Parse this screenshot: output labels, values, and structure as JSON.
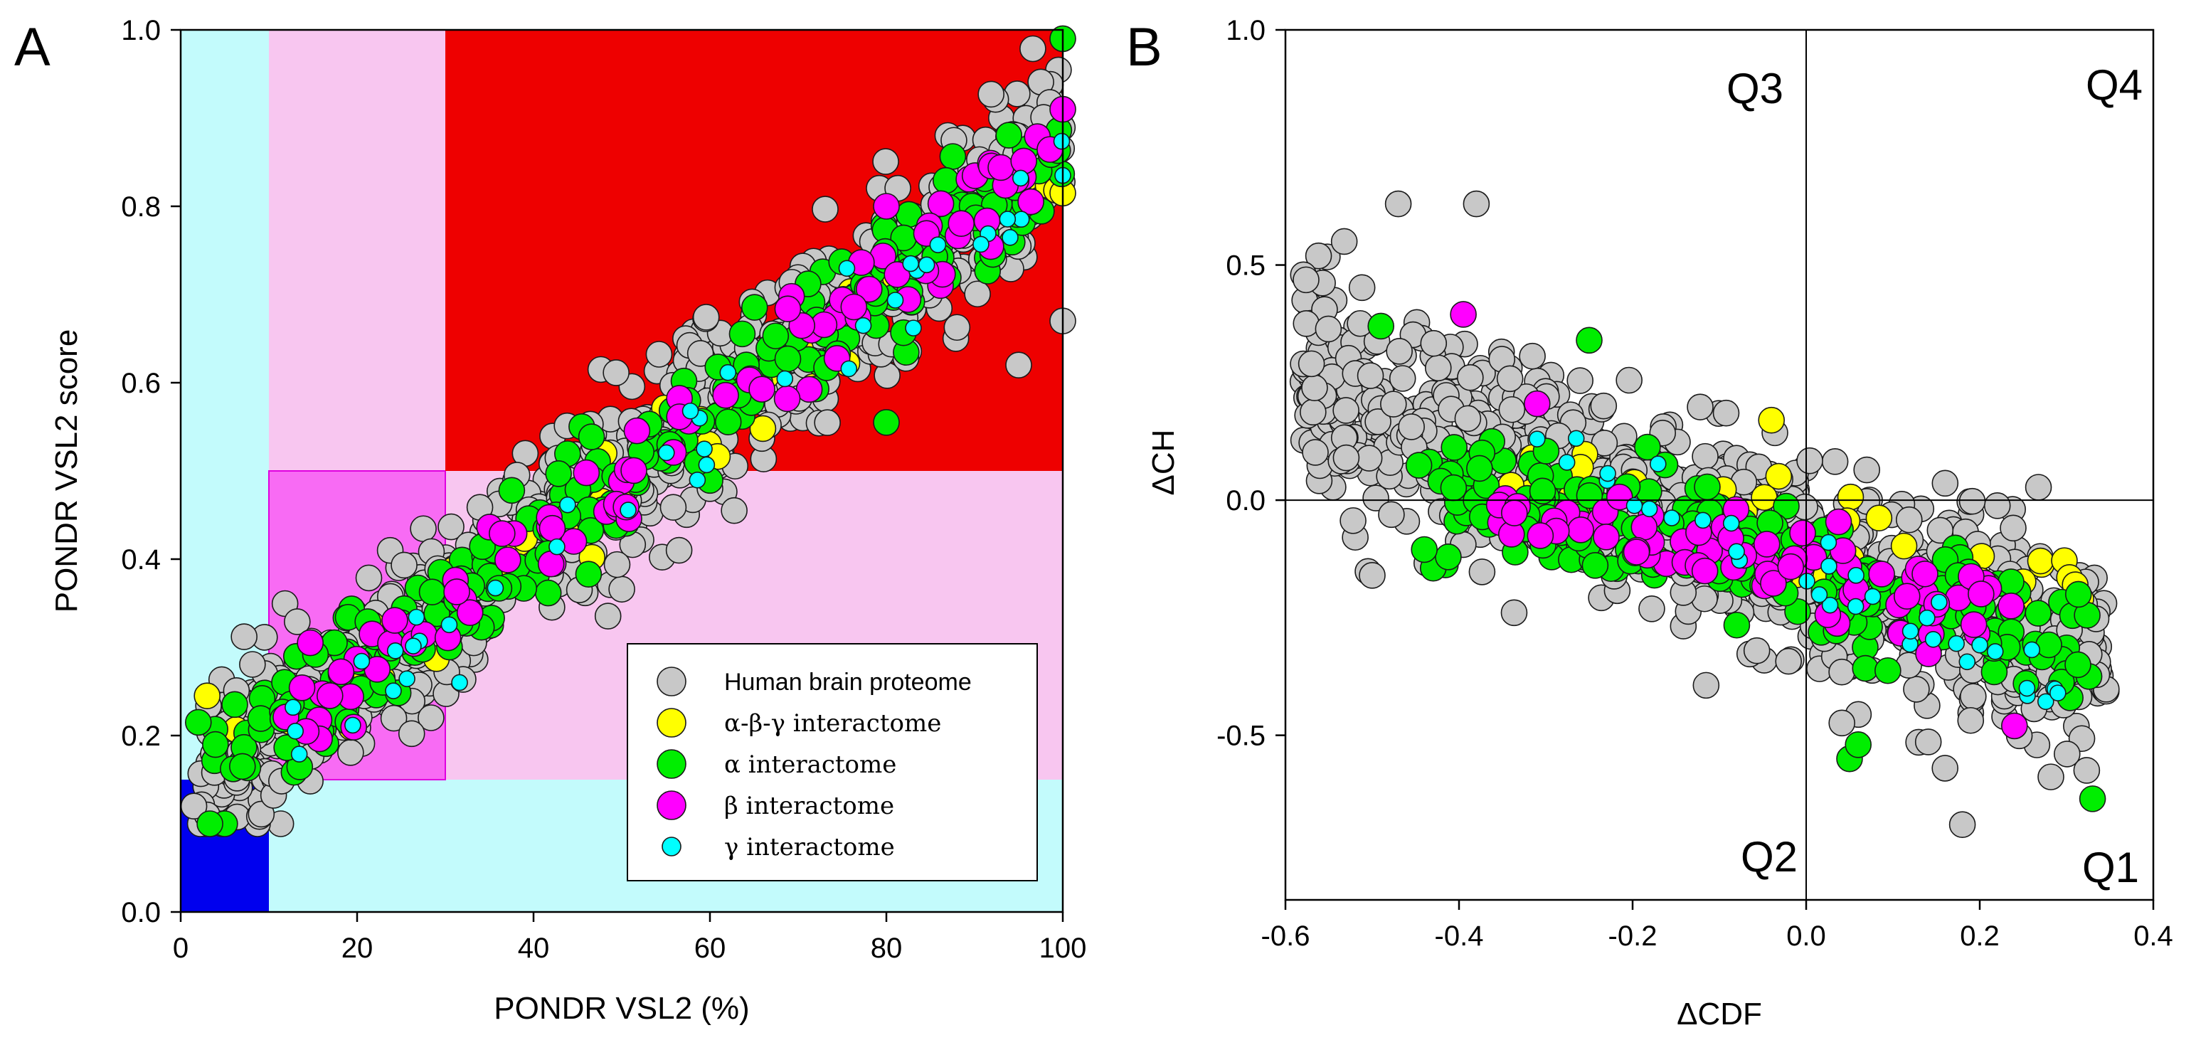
{
  "chart_data": [
    {
      "panel": "A",
      "type": "scatter",
      "xlabel": "PONDR VSL2 (%)",
      "ylabel": "PONDR VSL2 score",
      "xlim": [
        0,
        100
      ],
      "ylim": [
        0.0,
        1.0
      ],
      "x_ticks": [
        "0",
        "20",
        "40",
        "60",
        "80",
        "100"
      ],
      "y_ticks": [
        "0.0",
        "0.2",
        "0.4",
        "0.6",
        "0.8",
        "1.0"
      ],
      "x_tick_values": [
        0,
        20,
        40,
        60,
        80,
        100
      ],
      "y_tick_values": [
        0,
        0.2,
        0.4,
        0.6,
        0.8,
        1.0
      ],
      "background_regions": [
        {
          "name": "cyan-left",
          "x": [
            0,
            10
          ],
          "y": [
            0,
            1.0
          ],
          "color": "#c3fbfc"
        },
        {
          "name": "cyan-bottom",
          "x": [
            10,
            100
          ],
          "y": [
            0,
            0.15
          ],
          "color": "#c3fbfc"
        },
        {
          "name": "blue",
          "x": [
            0,
            10
          ],
          "y": [
            0,
            0.15
          ],
          "color": "#0000ee"
        },
        {
          "name": "pink-top",
          "x": [
            10,
            30
          ],
          "y": [
            0.5,
            1.0
          ],
          "color": "#f8c6f0"
        },
        {
          "name": "pink-right",
          "x": [
            30,
            100
          ],
          "y": [
            0.15,
            0.5
          ],
          "color": "#f8c6f0"
        },
        {
          "name": "magenta",
          "x": [
            10,
            30
          ],
          "y": [
            0.15,
            0.5
          ],
          "color": "#f86bf4"
        },
        {
          "name": "red",
          "x": [
            30,
            100
          ],
          "y": [
            0.5,
            1.0
          ],
          "color": "#ee0000"
        }
      ],
      "legend": {
        "placement": "bottom-right",
        "entries": [
          {
            "label": "Human brain proteome",
            "color": "#c8c8c8",
            "serif": false
          },
          {
            "label": "α-β-γ interactome",
            "color": "#ffff00",
            "serif": true
          },
          {
            "label": "α interactome",
            "color": "#00ee00",
            "serif": true
          },
          {
            "label": "β interactome",
            "color": "#ff00ff",
            "serif": true
          },
          {
            "label": "γ interactome",
            "color": "#00ffff",
            "serif": true
          }
        ]
      },
      "series": [
        {
          "name": "Human brain proteome",
          "color": "#c8c8c8",
          "distribution": {
            "x_range": [
              2,
              100
            ],
            "y_trend": [
              0.14,
              0.87
            ],
            "spread": 0.05,
            "count": 900,
            "outliers": [
              [
                56.5,
                0.41
              ],
              [
                95,
                0.62
              ],
              [
                100,
                0.67
              ],
              [
                3,
                0.11
              ],
              [
                1.5,
                0.12
              ],
              [
                60,
                0.48
              ]
            ]
          }
        },
        {
          "name": "α-β-γ interactome",
          "color": "#ffff00",
          "distribution": {
            "x_range": [
              3,
              100
            ],
            "y_trend": [
              0.15,
              0.85
            ],
            "spread": 0.03,
            "count": 45,
            "outliers": [
              [
                3,
                0.245
              ],
              [
                100,
                0.815
              ],
              [
                66,
                0.548
              ],
              [
                48,
                0.52
              ]
            ]
          }
        },
        {
          "name": "α interactome",
          "color": "#00ee00",
          "distribution": {
            "x_range": [
              3,
              100
            ],
            "y_trend": [
              0.15,
              0.86
            ],
            "spread": 0.035,
            "count": 250,
            "outliers": [
              [
                2,
                0.215
              ],
              [
                7,
                0.165
              ],
              [
                100,
                0.99
              ],
              [
                80,
                0.555
              ]
            ]
          }
        },
        {
          "name": "β interactome",
          "color": "#ff00ff",
          "distribution": {
            "x_range": [
              10,
              100
            ],
            "y_trend": [
              0.2,
              0.87
            ],
            "spread": 0.03,
            "count": 90,
            "outliers": [
              [
                80,
                0.8
              ],
              [
                100,
                0.91
              ]
            ]
          }
        },
        {
          "name": "γ interactome",
          "color": "#00ffff",
          "distribution": {
            "x_range": [
              12,
              100
            ],
            "y_trend": [
              0.2,
              0.84
            ],
            "spread": 0.03,
            "count": 40,
            "outliers": [
              [
                13,
                0.205
              ],
              [
                100,
                0.835
              ]
            ]
          }
        }
      ]
    },
    {
      "panel": "B",
      "type": "scatter",
      "xlabel": "ΔCDF",
      "ylabel": "ΔCH",
      "xlim": [
        -0.6,
        0.4
      ],
      "ylim": [
        -0.85,
        1.0
      ],
      "x_ticks": [
        "-0.6",
        "-0.4",
        "-0.2",
        "0.0",
        "0.2",
        "0.4"
      ],
      "y_ticks": [
        "-0.5",
        "0.0",
        "0.5",
        "1.0"
      ],
      "x_tick_values": [
        -0.6,
        -0.4,
        -0.2,
        0.0,
        0.2,
        0.4
      ],
      "y_tick_values": [
        -0.5,
        0.0,
        0.5,
        1.0
      ],
      "reference_lines": {
        "x": 0.0,
        "y": 0.0
      },
      "quadrants": [
        {
          "label": "Q1",
          "position": "bottom-right"
        },
        {
          "label": "Q2",
          "position": "bottom-left-of-center"
        },
        {
          "label": "Q3",
          "position": "top-left-of-center"
        },
        {
          "label": "Q4",
          "position": "top-right"
        }
      ],
      "series": [
        {
          "name": "Human brain proteome",
          "color": "#c8c8c8",
          "distribution": {
            "x_range": [
              -0.58,
              0.35
            ],
            "y_at_xmin": 0.25,
            "y_at_xmax": -0.35,
            "spread": 0.2,
            "count": 900,
            "outliers": [
              [
                -0.47,
                0.63
              ],
              [
                -0.38,
                0.63
              ],
              [
                -0.5,
                -0.16
              ],
              [
                0.16,
                -0.57
              ],
              [
                0.18,
                -0.69
              ],
              [
                -0.57,
                0.29
              ],
              [
                -0.53,
                0.09
              ]
            ]
          }
        },
        {
          "name": "α-β-γ interactome",
          "color": "#ffff00",
          "distribution": {
            "x_range": [
              -0.35,
              0.32
            ],
            "y_at_xmin": 0.05,
            "y_at_xmax": -0.2,
            "spread": 0.1,
            "count": 40,
            "outliers": [
              [
                -0.04,
                0.17
              ],
              [
                0.31,
                -0.18
              ],
              [
                -0.26,
                0.07
              ]
            ]
          }
        },
        {
          "name": "α interactome",
          "color": "#00ee00",
          "distribution": {
            "x_range": [
              -0.45,
              0.33
            ],
            "y_at_xmin": 0.05,
            "y_at_xmax": -0.3,
            "spread": 0.12,
            "count": 220,
            "outliers": [
              [
                -0.49,
                0.37
              ],
              [
                -0.25,
                0.34
              ],
              [
                0.33,
                -0.635
              ],
              [
                0.05,
                -0.55
              ],
              [
                0.06,
                -0.52
              ],
              [
                -0.44,
                -0.105
              ]
            ]
          }
        },
        {
          "name": "β interactome",
          "color": "#ff00ff",
          "distribution": {
            "x_range": [
              -0.36,
              0.25
            ],
            "y_at_xmin": 0.0,
            "y_at_xmax": -0.25,
            "spread": 0.08,
            "count": 80,
            "outliers": [
              [
                -0.395,
                0.395
              ],
              [
                -0.31,
                0.205
              ],
              [
                0.24,
                -0.48
              ]
            ]
          }
        },
        {
          "name": "γ interactome",
          "color": "#00ffff",
          "distribution": {
            "x_range": [
              -0.32,
              0.3
            ],
            "y_at_xmin": 0.1,
            "y_at_xmax": -0.4,
            "spread": 0.08,
            "count": 35,
            "outliers": [
              [
                -0.31,
                0.13
              ],
              [
                0.29,
                -0.41
              ]
            ]
          }
        }
      ]
    }
  ],
  "panels": {
    "a": {
      "letter": "A"
    },
    "b": {
      "letter": "B"
    }
  }
}
